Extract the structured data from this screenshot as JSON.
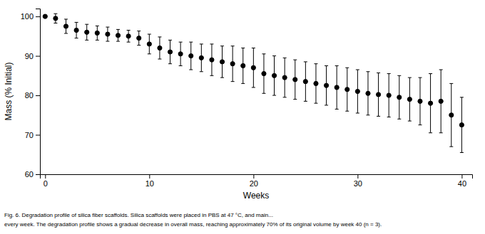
{
  "chart_data": {
    "type": "scatter",
    "x": [
      0,
      1,
      2,
      3,
      4,
      5,
      6,
      7,
      8,
      9,
      10,
      11,
      12,
      13,
      14,
      15,
      16,
      17,
      18,
      19,
      20,
      21,
      22,
      23,
      24,
      25,
      26,
      27,
      28,
      29,
      30,
      31,
      32,
      33,
      34,
      35,
      36,
      37,
      38,
      39,
      40
    ],
    "values": [
      100,
      99.5,
      97.5,
      96.5,
      96.0,
      95.8,
      95.5,
      95.2,
      95.0,
      94.5,
      93.0,
      92.0,
      91.0,
      90.5,
      90.0,
      89.5,
      89.0,
      88.5,
      88.0,
      87.5,
      87.0,
      85.5,
      85.0,
      84.5,
      84.0,
      83.5,
      83.0,
      82.5,
      82.0,
      81.5,
      81.0,
      80.5,
      80.2,
      80.0,
      79.5,
      79.0,
      78.5,
      78.0,
      78.5,
      75.0,
      72.5
    ],
    "errors": [
      0.3,
      1.2,
      1.8,
      2.0,
      2.0,
      1.8,
      1.8,
      1.5,
      1.5,
      1.8,
      2.5,
      2.8,
      3.0,
      3.0,
      3.5,
      3.5,
      4.0,
      4.0,
      4.5,
      4.5,
      5.0,
      5.0,
      5.0,
      5.0,
      5.0,
      5.0,
      5.0,
      5.0,
      5.5,
      5.5,
      5.5,
      5.5,
      5.5,
      5.5,
      5.5,
      5.5,
      6.0,
      7.5,
      8.0,
      8.0,
      7.0
    ],
    "x_label": "Weeks",
    "y_label": "Mass (% Initial)",
    "xlim": [
      -0.5,
      41
    ],
    "ylim": [
      60,
      102
    ],
    "xticks": [
      0,
      10,
      20,
      30,
      40
    ],
    "yticks": [
      60,
      70,
      80,
      90,
      100
    ],
    "color": "black",
    "marker": "circle",
    "annotations": [
      "Fig. 6.  Degradation profile of silica fiber scaffolds. Silica scaffolds were placed in PBS at 47 °C, and main...",
      "every week. The degradation profile shows a gradual decrease in overall mass, reaching approximately 70% of its original volume by week 40 (n = 3)."
    ]
  }
}
